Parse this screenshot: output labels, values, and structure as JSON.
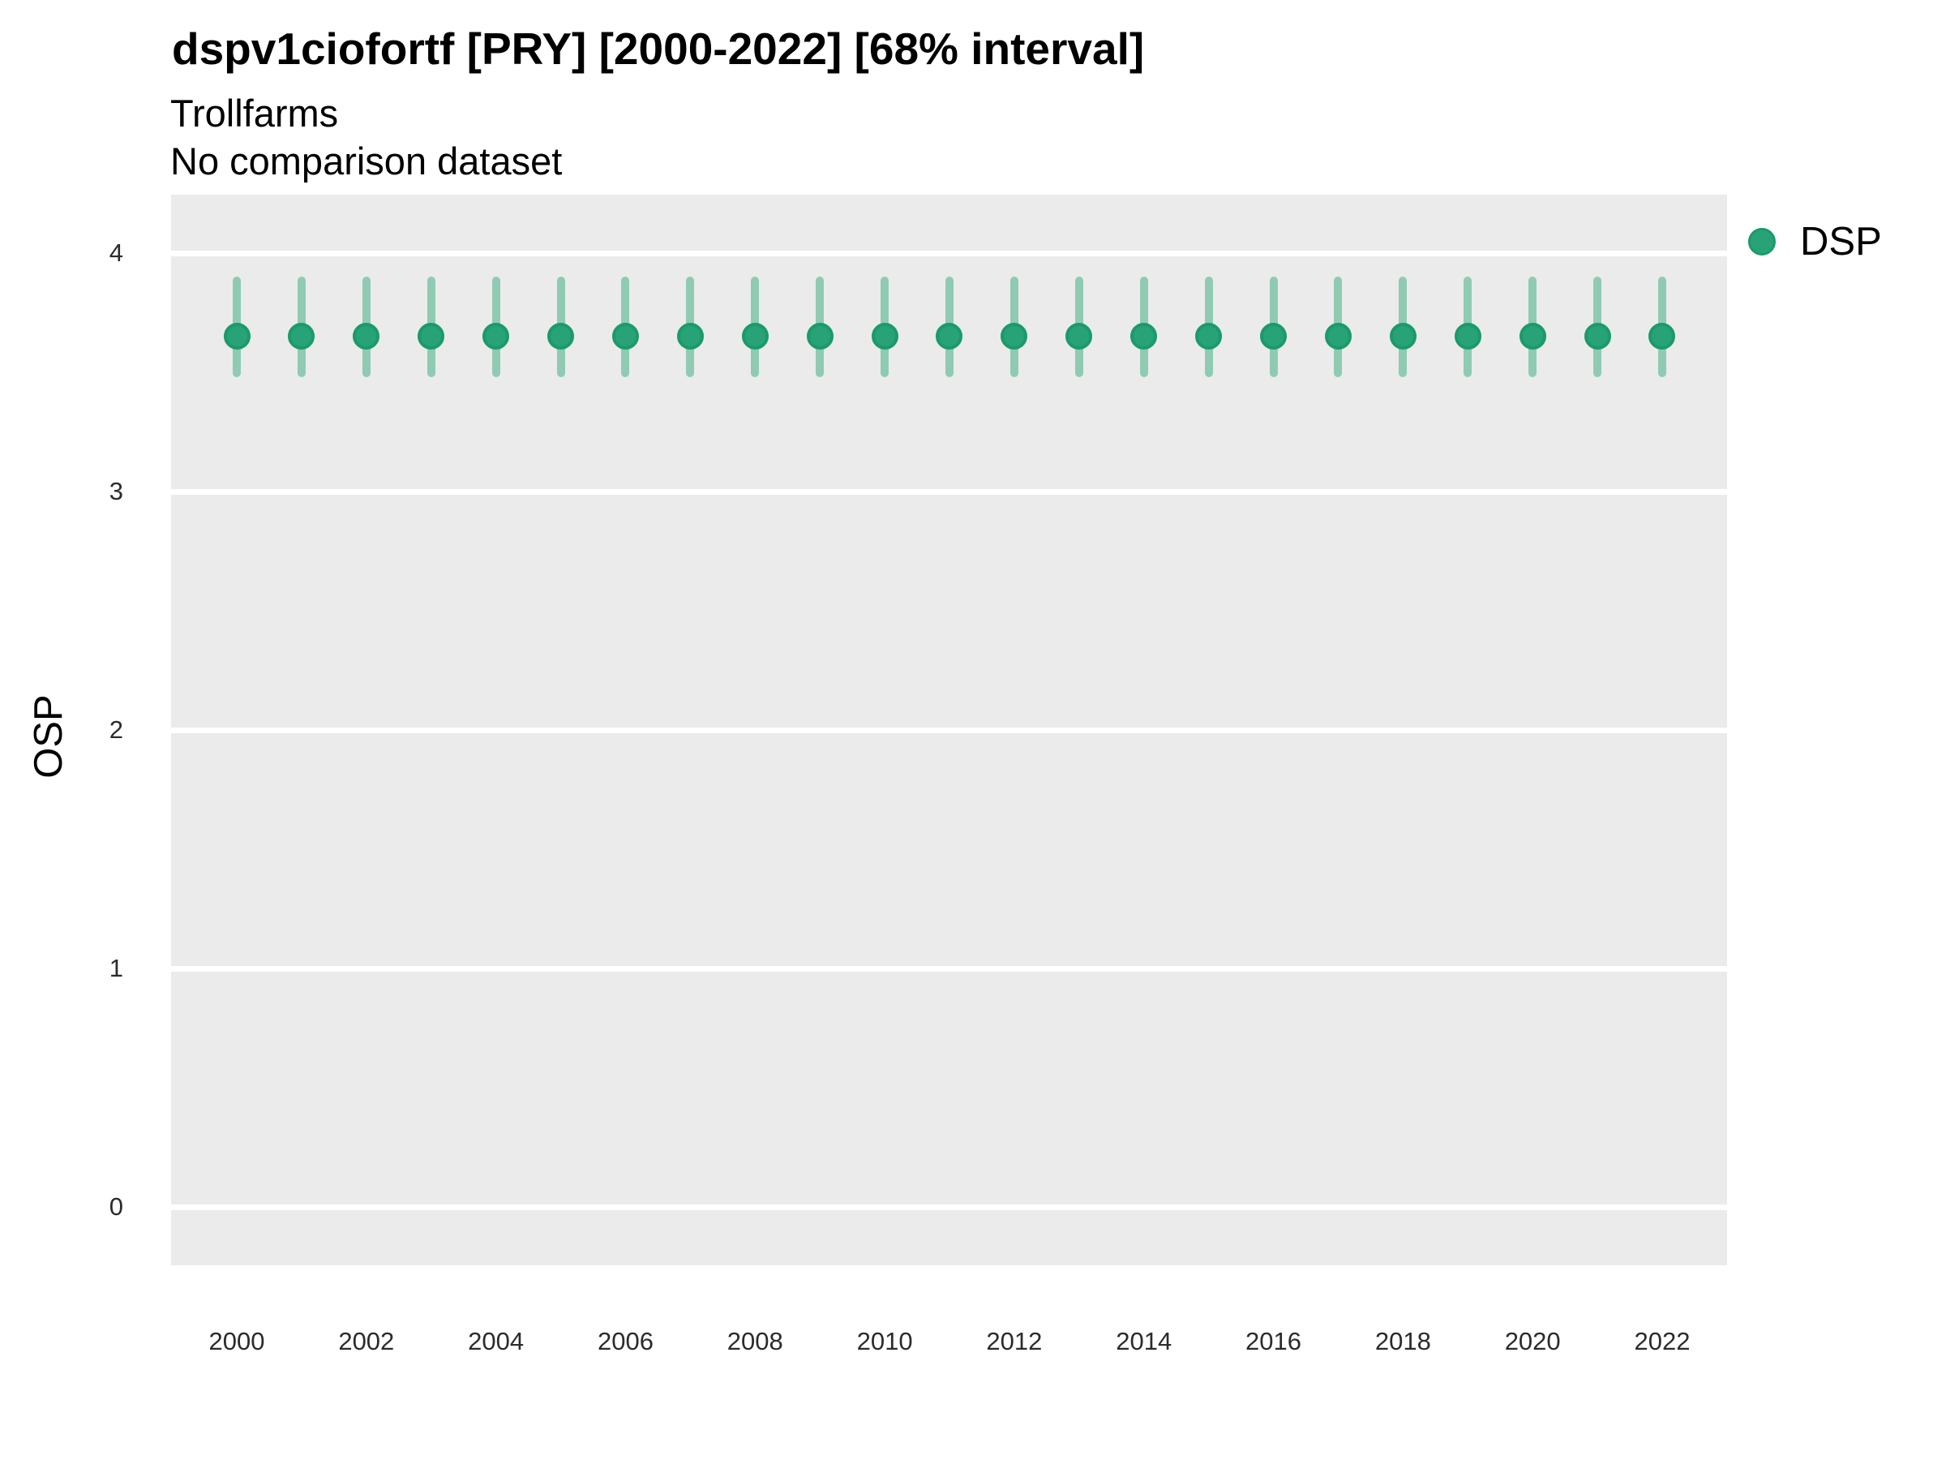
{
  "header": {
    "title": "dspv1ciofortf [PRY] [2000-2022] [68% interval]",
    "subtitle_line1": "Trollfarms",
    "subtitle_line2": "No comparison dataset"
  },
  "legend": {
    "items": [
      {
        "label": "DSP",
        "color": "#28a377"
      }
    ]
  },
  "colors": {
    "panel_background": "#ebebeb",
    "gridline": "#ffffff",
    "point_fill": "#28a377",
    "point_border": "#1b9a6a",
    "interval_bar": "#8fcbb2"
  },
  "chart_data": {
    "type": "scatter",
    "title": "dspv1ciofortf [PRY] [2000-2022] [68% interval]",
    "subtitle": "Trollfarms",
    "note": "No comparison dataset",
    "xlabel": "",
    "ylabel": "OSP",
    "legend_position": "right",
    "grid": "major-horizontal",
    "interval": "68%",
    "ylim": [
      -0.25,
      4.25
    ],
    "y_ticks": [
      0,
      1,
      2,
      3,
      4
    ],
    "x_ticks": [
      2000,
      2002,
      2004,
      2006,
      2008,
      2010,
      2012,
      2014,
      2016,
      2018,
      2020,
      2022
    ],
    "series": [
      {
        "name": "DSP",
        "x": [
          2000,
          2001,
          2002,
          2003,
          2004,
          2005,
          2006,
          2007,
          2008,
          2009,
          2010,
          2011,
          2012,
          2013,
          2014,
          2015,
          2016,
          2017,
          2018,
          2019,
          2020,
          2021,
          2022
        ],
        "y": [
          3.65,
          3.65,
          3.65,
          3.65,
          3.65,
          3.65,
          3.65,
          3.65,
          3.65,
          3.65,
          3.65,
          3.65,
          3.65,
          3.65,
          3.65,
          3.65,
          3.65,
          3.65,
          3.65,
          3.65,
          3.65,
          3.65,
          3.65
        ],
        "lower": [
          3.48,
          3.48,
          3.48,
          3.48,
          3.48,
          3.48,
          3.48,
          3.48,
          3.48,
          3.48,
          3.48,
          3.48,
          3.48,
          3.48,
          3.48,
          3.48,
          3.48,
          3.48,
          3.48,
          3.48,
          3.48,
          3.48,
          3.48
        ],
        "upper": [
          3.9,
          3.9,
          3.9,
          3.9,
          3.9,
          3.9,
          3.9,
          3.9,
          3.9,
          3.9,
          3.9,
          3.9,
          3.9,
          3.9,
          3.9,
          3.9,
          3.9,
          3.9,
          3.9,
          3.9,
          3.9,
          3.9,
          3.9
        ]
      }
    ]
  }
}
